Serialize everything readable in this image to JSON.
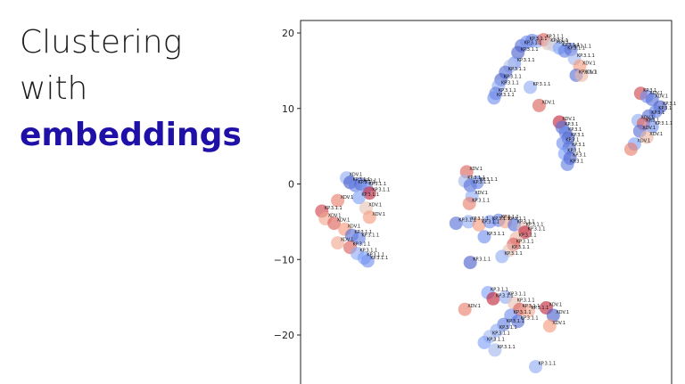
{
  "title": {
    "line1": "Clustering",
    "line2": "with",
    "line3": "embeddings"
  },
  "colors": {
    "title_text": "#1c1c1c",
    "title_accent": "#1f10a8",
    "low": "#3b4cc0",
    "high": "#b40426"
  },
  "chart_data": {
    "type": "scatter",
    "colormap": "coolwarm",
    "xlabel": "",
    "ylabel": "",
    "ylim": [
      -26,
      22
    ],
    "yticks": [
      20,
      10,
      0,
      -10,
      -20
    ],
    "tick_labels": [
      "20",
      "10",
      "0",
      "−10",
      "−20"
    ],
    "grid": false,
    "legend": "none",
    "points": [
      {
        "x": 0.0,
        "y": 18.3,
        "c": 0.1,
        "label": "KP.3.1.1"
      },
      {
        "x": 0.6,
        "y": 18.8,
        "c": 0.2,
        "label": "KP.3.1.1"
      },
      {
        "x": 1.2,
        "y": 19.0,
        "c": 0.15,
        "label": ""
      },
      {
        "x": 1.8,
        "y": 18.9,
        "c": 0.3,
        "label": ""
      },
      {
        "x": 2.5,
        "y": 19.1,
        "c": 0.85,
        "label": "KP.3.1.1"
      },
      {
        "x": 3.0,
        "y": 18.6,
        "c": 0.6,
        "label": "KP.3.1.1"
      },
      {
        "x": 3.6,
        "y": 18.4,
        "c": 0.45,
        "label": "XDV.1"
      },
      {
        "x": 4.3,
        "y": 18.0,
        "c": 0.25,
        "label": "KP.3.1.1"
      },
      {
        "x": 4.9,
        "y": 17.6,
        "c": 0.15,
        "label": "KP.3.1.1"
      },
      {
        "x": 5.6,
        "y": 17.8,
        "c": 0.1,
        "label": "KP.3.1.1"
      },
      {
        "x": 6.0,
        "y": 16.6,
        "c": 0.35,
        "label": "KP.3.1.1"
      },
      {
        "x": -0.4,
        "y": 17.4,
        "c": 0.05,
        "label": "KP.3.1.1"
      },
      {
        "x": -0.8,
        "y": 16.0,
        "c": 0.2,
        "label": "KP.3.1.1"
      },
      {
        "x": -1.3,
        "y": 15.6,
        "c": 0.4,
        "label": ""
      },
      {
        "x": -1.8,
        "y": 14.8,
        "c": 0.1,
        "label": "KP.3.1.1"
      },
      {
        "x": -2.3,
        "y": 13.8,
        "c": 0.05,
        "label": "KP.3.1.1"
      },
      {
        "x": -2.6,
        "y": 13.0,
        "c": 0.3,
        "label": "KP.3.1.1"
      },
      {
        "x": -2.9,
        "y": 12.0,
        "c": 0.15,
        "label": "KP.3.1.1"
      },
      {
        "x": -3.1,
        "y": 11.4,
        "c": 0.2,
        "label": "KP.3.1.1"
      },
      {
        "x": 1.0,
        "y": 12.8,
        "c": 0.3,
        "label": "KP.3.1.1"
      },
      {
        "x": 2.0,
        "y": 10.4,
        "c": 0.85,
        "label": "XDV.1"
      },
      {
        "x": 6.6,
        "y": 15.6,
        "c": 0.75,
        "label": "XDV.1"
      },
      {
        "x": 6.2,
        "y": 14.4,
        "c": 0.1,
        "label": "KP.3.1.1"
      },
      {
        "x": 6.8,
        "y": 14.4,
        "c": 0.65,
        "label": "XDV.1"
      },
      {
        "x": 4.3,
        "y": 8.2,
        "c": 0.95,
        "label": "XDV.1"
      },
      {
        "x": 4.6,
        "y": 7.5,
        "c": 0.1,
        "label": "KP.3.1"
      },
      {
        "x": 5.0,
        "y": 6.8,
        "c": 0.15,
        "label": "KP.3.1"
      },
      {
        "x": 5.3,
        "y": 6.1,
        "c": 0.05,
        "label": "KP.3.1"
      },
      {
        "x": 4.7,
        "y": 5.4,
        "c": 0.2,
        "label": "KP.3.1"
      },
      {
        "x": 5.4,
        "y": 4.8,
        "c": 0.1,
        "label": "KP.3.1"
      },
      {
        "x": 4.9,
        "y": 4.0,
        "c": 0.25,
        "label": "KP.3.1"
      },
      {
        "x": 5.5,
        "y": 3.4,
        "c": 0.05,
        "label": "KP.3.1"
      },
      {
        "x": 5.2,
        "y": 2.6,
        "c": 0.15,
        "label": "KP.3.1"
      },
      {
        "x": 13.5,
        "y": 12.0,
        "c": 0.9,
        "label": "KP.3.1"
      },
      {
        "x": 14.2,
        "y": 11.6,
        "c": 0.2,
        "label": "XDV.1"
      },
      {
        "x": 14.8,
        "y": 11.2,
        "c": 0.1,
        "label": "XDV.1"
      },
      {
        "x": 15.7,
        "y": 10.2,
        "c": 0.05,
        "label": "KP.3.1"
      },
      {
        "x": 15.2,
        "y": 9.6,
        "c": 0.15,
        "label": "KP.3.1"
      },
      {
        "x": 14.4,
        "y": 9.0,
        "c": 0.1,
        "label": "KP.3.1"
      },
      {
        "x": 13.2,
        "y": 8.4,
        "c": 0.3,
        "label": "XDV.1"
      },
      {
        "x": 13.8,
        "y": 8.0,
        "c": 0.85,
        "label": "KP.3.1"
      },
      {
        "x": 14.8,
        "y": 7.6,
        "c": 0.2,
        "label": "KP.3.1.1"
      },
      {
        "x": 13.4,
        "y": 7.0,
        "c": 0.1,
        "label": "XDV.1"
      },
      {
        "x": 14.2,
        "y": 6.2,
        "c": 0.65,
        "label": "XDV.1"
      },
      {
        "x": 12.8,
        "y": 5.3,
        "c": 0.25,
        "label": "XDV.1"
      },
      {
        "x": 12.4,
        "y": 4.6,
        "c": 0.8,
        "label": ""
      },
      {
        "x": -19.8,
        "y": 0.8,
        "c": 0.3,
        "label": "XDV.1"
      },
      {
        "x": -19.4,
        "y": 0.2,
        "c": 0.05,
        "label": "KP.3.1.1"
      },
      {
        "x": -18.8,
        "y": -0.2,
        "c": 0.15,
        "label": "KP.3.1.1"
      },
      {
        "x": -18.2,
        "y": 0.0,
        "c": 0.1,
        "label": "KP.3.1.1"
      },
      {
        "x": -17.6,
        "y": -0.4,
        "c": 0.2,
        "label": "KP.3.1.1"
      },
      {
        "x": -17.2,
        "y": -1.2,
        "c": 0.95,
        "label": "KP.3.1.1"
      },
      {
        "x": -18.4,
        "y": -1.8,
        "c": 0.25,
        "label": "KP.3.1.1"
      },
      {
        "x": -20.8,
        "y": -2.2,
        "c": 0.8,
        "label": "XDV.1"
      },
      {
        "x": -22.6,
        "y": -3.6,
        "c": 0.9,
        "label": "KP.3.1.1"
      },
      {
        "x": -22.2,
        "y": -4.6,
        "c": 0.7,
        "label": "XDV.1"
      },
      {
        "x": -21.2,
        "y": -5.2,
        "c": 0.85,
        "label": "XDV.1"
      },
      {
        "x": -20.0,
        "y": -6.0,
        "c": 0.75,
        "label": "XDV.1"
      },
      {
        "x": -17.6,
        "y": -3.2,
        "c": 0.6,
        "label": "XDV.1"
      },
      {
        "x": -17.2,
        "y": -4.4,
        "c": 0.75,
        "label": "XDV.1"
      },
      {
        "x": -19.2,
        "y": -6.8,
        "c": 0.1,
        "label": "KP.3.1.1"
      },
      {
        "x": -18.4,
        "y": -7.2,
        "c": 0.15,
        "label": "KP.3.1.1"
      },
      {
        "x": -20.8,
        "y": -7.8,
        "c": 0.7,
        "label": "XDV.1"
      },
      {
        "x": -19.4,
        "y": -8.4,
        "c": 0.85,
        "label": "KP.3.1.1"
      },
      {
        "x": -18.6,
        "y": -9.2,
        "c": 0.3,
        "label": "KP.3.1.1"
      },
      {
        "x": -17.8,
        "y": -9.8,
        "c": 0.25,
        "label": "KP.3.1.1"
      },
      {
        "x": -17.4,
        "y": -10.2,
        "c": 0.2,
        "label": "KP.3.1.1"
      },
      {
        "x": -6.2,
        "y": 1.6,
        "c": 0.85,
        "label": "XDV.1"
      },
      {
        "x": -6.4,
        "y": 0.4,
        "c": 0.35,
        "label": "KP.3.1.1"
      },
      {
        "x": -5.8,
        "y": -0.2,
        "c": 0.1,
        "label": "KP.3.1.1"
      },
      {
        "x": -5.0,
        "y": 0.2,
        "c": 0.15,
        "label": "KP.3.1.1"
      },
      {
        "x": -5.6,
        "y": -1.6,
        "c": 0.3,
        "label": "XDV.1"
      },
      {
        "x": -5.9,
        "y": -2.6,
        "c": 0.8,
        "label": "KP.3.1.1"
      },
      {
        "x": -7.4,
        "y": -5.2,
        "c": 0.1,
        "label": "KP.3.1.1"
      },
      {
        "x": -6.0,
        "y": -5.0,
        "c": 0.3,
        "label": "KP.3.1.1"
      },
      {
        "x": -4.8,
        "y": -5.4,
        "c": 0.75,
        "label": "KP.3.1.1"
      },
      {
        "x": -3.6,
        "y": -5.0,
        "c": 0.2,
        "label": "KP.3.1.1"
      },
      {
        "x": -2.6,
        "y": -4.8,
        "c": 0.15,
        "label": "KP.3.1.1"
      },
      {
        "x": -1.8,
        "y": -5.0,
        "c": 0.7,
        "label": "KP.3.1.1"
      },
      {
        "x": -0.8,
        "y": -5.4,
        "c": 0.1,
        "label": "KP.3.1.1"
      },
      {
        "x": 0.2,
        "y": -5.8,
        "c": 0.6,
        "label": "KP.3.1.1"
      },
      {
        "x": 0.4,
        "y": -6.4,
        "c": 0.95,
        "label": "KP.3.1.1"
      },
      {
        "x": -4.2,
        "y": -7.0,
        "c": 0.2,
        "label": "KP.3.1.1"
      },
      {
        "x": -0.6,
        "y": -7.2,
        "c": 0.65,
        "label": "KP.3.1.1"
      },
      {
        "x": -0.9,
        "y": -8.0,
        "c": 0.85,
        "label": "KP.3.1.1"
      },
      {
        "x": -1.4,
        "y": -8.8,
        "c": 0.6,
        "label": "KP.3.1.1"
      },
      {
        "x": -5.8,
        "y": -10.4,
        "c": 0.05,
        "label": "KP.3.1.1"
      },
      {
        "x": -2.2,
        "y": -9.6,
        "c": 0.3,
        "label": "KP.3.1.1"
      },
      {
        "x": -3.8,
        "y": -14.4,
        "c": 0.25,
        "label": "KP.3.1.1"
      },
      {
        "x": -3.2,
        "y": -15.2,
        "c": 0.95,
        "label": "KP.3.1.1"
      },
      {
        "x": -1.8,
        "y": -15.0,
        "c": 0.3,
        "label": "KP.3.1.1"
      },
      {
        "x": -0.8,
        "y": -15.8,
        "c": 0.6,
        "label": "KP.3.1.1"
      },
      {
        "x": -0.2,
        "y": -16.6,
        "c": 0.85,
        "label": "KP.3.1.1"
      },
      {
        "x": 0.8,
        "y": -16.8,
        "c": 0.7,
        "label": "KP.3.1.1"
      },
      {
        "x": -1.2,
        "y": -17.4,
        "c": 0.2,
        "label": "KP.3.1.1"
      },
      {
        "x": -0.4,
        "y": -18.2,
        "c": 0.1,
        "label": "KP.3.1.1"
      },
      {
        "x": -2.0,
        "y": -18.6,
        "c": 0.15,
        "label": "KP.3.1.1"
      },
      {
        "x": -2.8,
        "y": -19.4,
        "c": 0.3,
        "label": "KP.3.1.1"
      },
      {
        "x": -3.6,
        "y": -20.2,
        "c": 0.35,
        "label": "KP.3.1.1"
      },
      {
        "x": -4.2,
        "y": -21.0,
        "c": 0.25,
        "label": "KP.3.1.1"
      },
      {
        "x": -3.0,
        "y": -22.0,
        "c": 0.35,
        "label": "KP.3.1.1"
      },
      {
        "x": -6.4,
        "y": -16.6,
        "c": 0.8,
        "label": "XDV.1"
      },
      {
        "x": 2.8,
        "y": -16.4,
        "c": 0.95,
        "label": "XDV.1"
      },
      {
        "x": 3.6,
        "y": -17.4,
        "c": 0.05,
        "label": "XDV.1"
      },
      {
        "x": 3.2,
        "y": -18.8,
        "c": 0.75,
        "label": "XDV.1"
      },
      {
        "x": 1.6,
        "y": -24.2,
        "c": 0.3,
        "label": "KP.3.1.1"
      }
    ]
  }
}
